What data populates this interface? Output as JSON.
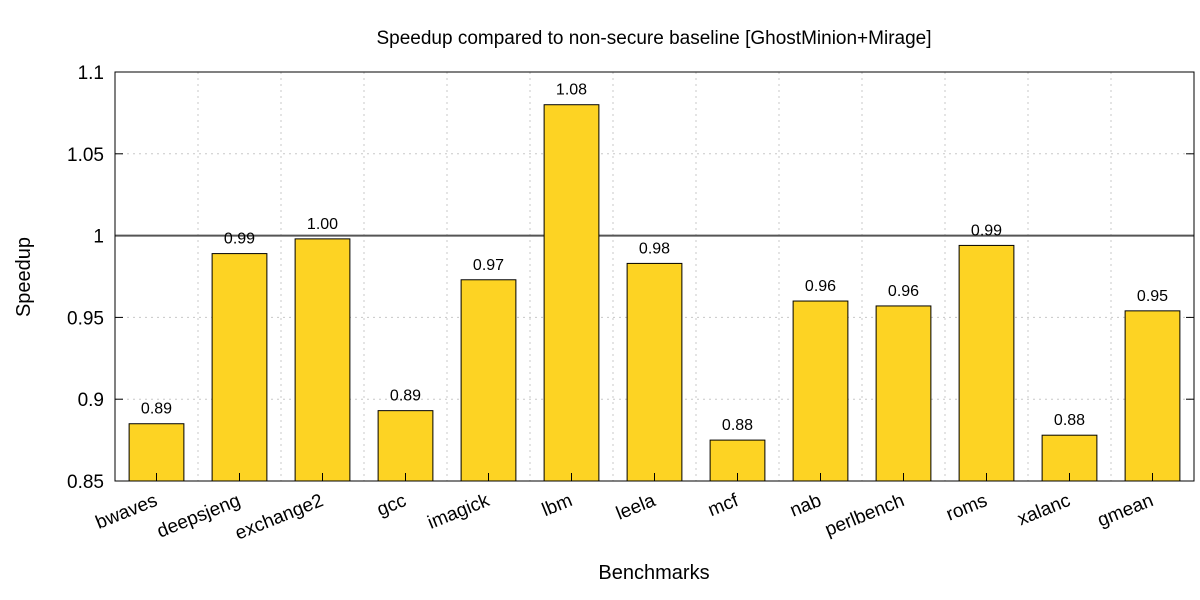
{
  "chart_data": {
    "type": "bar",
    "title": "Speedup compared to non-secure baseline [GhostMinion+Mirage]",
    "xlabel": "Benchmarks",
    "ylabel": "Speedup",
    "ylim": [
      0.85,
      1.1
    ],
    "yticks": [
      0.85,
      0.9,
      0.95,
      1,
      1.05,
      1.1
    ],
    "ytick_labels": [
      "0.85",
      "0.9",
      "0.95",
      "1",
      "1.05",
      "1.1"
    ],
    "grid": true,
    "reference_line": 1,
    "bar_color": "#fdd323",
    "categories": [
      "bwaves",
      "deepsjeng",
      "exchange2",
      "gcc",
      "imagick",
      "lbm",
      "leela",
      "mcf",
      "nab",
      "perlbench",
      "roms",
      "xalanc",
      "gmean"
    ],
    "values": [
      0.885,
      0.989,
      0.998,
      0.893,
      0.973,
      1.08,
      0.983,
      0.875,
      0.96,
      0.957,
      0.994,
      0.878,
      0.954
    ],
    "value_labels": [
      "0.89",
      "0.99",
      "1.00",
      "0.89",
      "0.97",
      "1.08",
      "0.98",
      "0.88",
      "0.96",
      "0.96",
      "0.99",
      "0.88",
      "0.95"
    ]
  }
}
